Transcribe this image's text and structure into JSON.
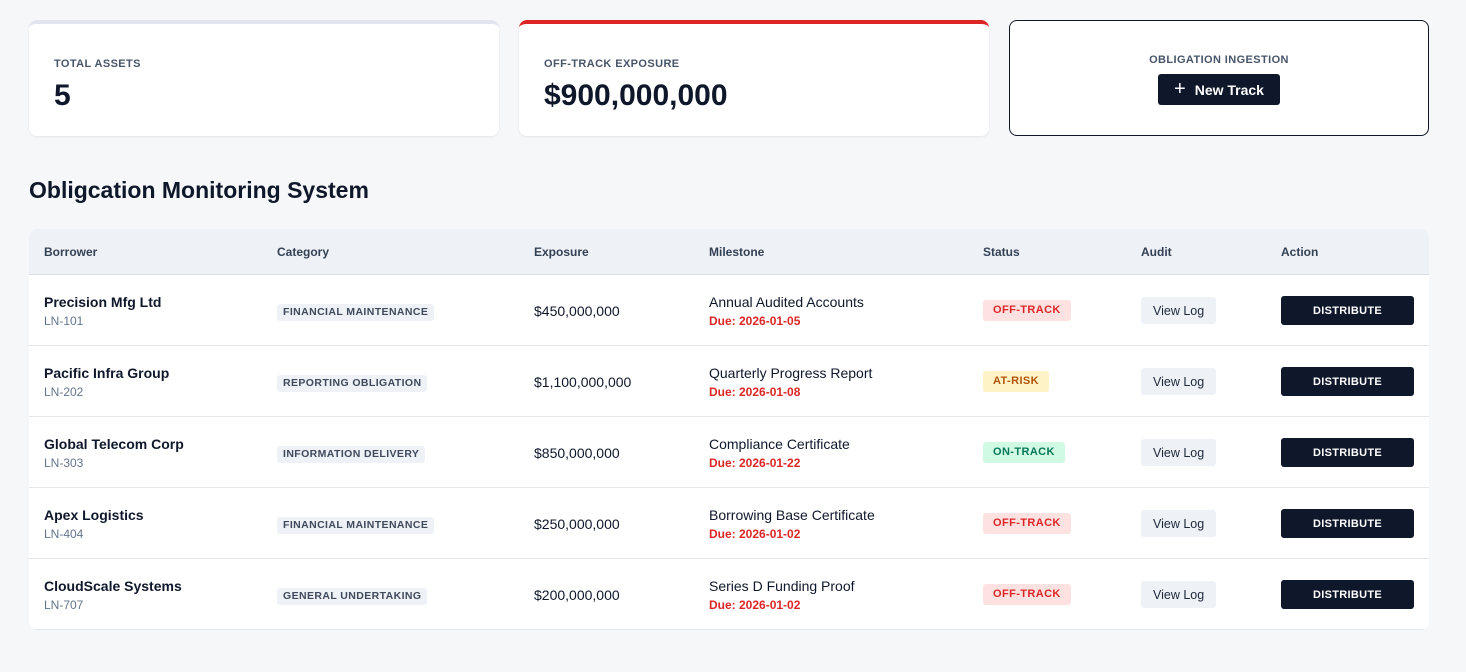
{
  "stats": {
    "total_assets_label": "TOTAL ASSETS",
    "total_assets_value": "5",
    "off_track_label": "OFF-TRACK EXPOSURE",
    "off_track_value": "$900,000,000",
    "ingestion_label": "OBLIGATION INGESTION",
    "new_track_label": "New Track"
  },
  "section_title": "Obligcation Monitoring System",
  "table": {
    "headers": [
      "Borrower",
      "Category",
      "Exposure",
      "Milestone",
      "Status",
      "Audit",
      "Action"
    ],
    "rows": [
      {
        "borrower": "Precision Mfg Ltd",
        "id": "LN-101",
        "category": "FINANCIAL MAINTENANCE",
        "exposure": "$450,000,000",
        "milestone": "Annual Audited Accounts",
        "due": "Due: 2026-01-05",
        "status": "OFF-TRACK",
        "audit": "View Log",
        "action": "DISTRIBUTE"
      },
      {
        "borrower": "Pacific Infra Group",
        "id": "LN-202",
        "category": "REPORTING OBLIGATION",
        "exposure": "$1,100,000,000",
        "milestone": "Quarterly Progress Report",
        "due": "Due: 2026-01-08",
        "status": "AT-RISK",
        "audit": "View Log",
        "action": "DISTRIBUTE"
      },
      {
        "borrower": "Global Telecom Corp",
        "id": "LN-303",
        "category": "INFORMATION DELIVERY",
        "exposure": "$850,000,000",
        "milestone": "Compliance Certificate",
        "due": "Due: 2026-01-22",
        "status": "ON-TRACK",
        "audit": "View Log",
        "action": "DISTRIBUTE"
      },
      {
        "borrower": "Apex Logistics",
        "id": "LN-404",
        "category": "FINANCIAL MAINTENANCE",
        "exposure": "$250,000,000",
        "milestone": "Borrowing Base Certificate",
        "due": "Due: 2026-01-02",
        "status": "OFF-TRACK",
        "audit": "View Log",
        "action": "DISTRIBUTE"
      },
      {
        "borrower": "CloudScale Systems",
        "id": "LN-707",
        "category": "GENERAL UNDERTAKING",
        "exposure": "$200,000,000",
        "milestone": "Series D Funding Proof",
        "due": "Due: 2026-01-02",
        "status": "OFF-TRACK",
        "audit": "View Log",
        "action": "DISTRIBUTE"
      }
    ]
  },
  "colors": {
    "primary": "#0f172a",
    "danger": "#dc2626",
    "warning": "#b45309",
    "success": "#047857"
  },
  "icons": {
    "new_track": "plus-icon"
  }
}
